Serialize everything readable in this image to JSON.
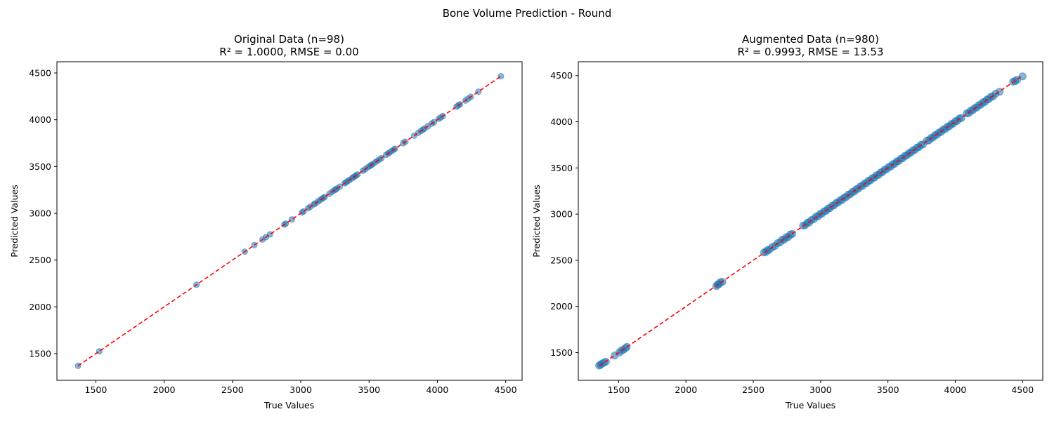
{
  "figure": {
    "suptitle": "Bone Volume Prediction - Round"
  },
  "colors": {
    "points": "#1f77b4",
    "identity_line": "#ff0000",
    "axes": "#000000",
    "background": "#ffffff"
  },
  "chart_data": [
    {
      "type": "scatter",
      "title": "Original Data (n=98)",
      "subtitle": "R² = 1.0000, RMSE = 0.00",
      "xlabel": "True Values",
      "ylabel": "Predicted Values",
      "xlim": [
        1215,
        4620
      ],
      "ylim": [
        1215,
        4620
      ],
      "xticks": [
        1500,
        2000,
        2500,
        3000,
        3500,
        4000,
        4500
      ],
      "yticks": [
        1500,
        2000,
        2500,
        3000,
        3500,
        4000,
        4500
      ],
      "grid": false,
      "identity_line": [
        1370,
        4465
      ],
      "series": [
        {
          "points": [
            [
              1370,
              1370
            ],
            [
              1525,
              1525
            ],
            [
              2237,
              2237
            ],
            [
              2590,
              2590
            ],
            [
              2660,
              2660
            ],
            [
              2720,
              2720
            ],
            [
              2745,
              2745
            ],
            [
              2775,
              2775
            ],
            [
              2880,
              2880
            ],
            [
              2890,
              2890
            ],
            [
              2935,
              2935
            ],
            [
              3010,
              3010
            ],
            [
              3020,
              3020
            ],
            [
              3055,
              3055
            ],
            [
              3070,
              3070
            ],
            [
              3095,
              3095
            ],
            [
              3105,
              3105
            ],
            [
              3125,
              3125
            ],
            [
              3140,
              3140
            ],
            [
              3155,
              3155
            ],
            [
              3165,
              3165
            ],
            [
              3175,
              3175
            ],
            [
              3210,
              3210
            ],
            [
              3230,
              3230
            ],
            [
              3245,
              3245
            ],
            [
              3255,
              3255
            ],
            [
              3265,
              3265
            ],
            [
              3285,
              3285
            ],
            [
              3320,
              3320
            ],
            [
              3330,
              3330
            ],
            [
              3345,
              3345
            ],
            [
              3355,
              3355
            ],
            [
              3375,
              3375
            ],
            [
              3385,
              3385
            ],
            [
              3395,
              3395
            ],
            [
              3405,
              3405
            ],
            [
              3415,
              3415
            ],
            [
              3455,
              3455
            ],
            [
              3470,
              3470
            ],
            [
              3490,
              3490
            ],
            [
              3505,
              3505
            ],
            [
              3515,
              3515
            ],
            [
              3525,
              3525
            ],
            [
              3545,
              3545
            ],
            [
              3560,
              3560
            ],
            [
              3575,
              3575
            ],
            [
              3590,
              3590
            ],
            [
              3625,
              3625
            ],
            [
              3640,
              3640
            ],
            [
              3650,
              3650
            ],
            [
              3665,
              3665
            ],
            [
              3680,
              3680
            ],
            [
              3690,
              3690
            ],
            [
              3750,
              3750
            ],
            [
              3765,
              3765
            ],
            [
              3830,
              3830
            ],
            [
              3860,
              3860
            ],
            [
              3880,
              3880
            ],
            [
              3895,
              3895
            ],
            [
              3905,
              3905
            ],
            [
              3930,
              3930
            ],
            [
              3960,
              3960
            ],
            [
              3975,
              3975
            ],
            [
              4010,
              4010
            ],
            [
              4025,
              4025
            ],
            [
              4040,
              4040
            ],
            [
              4140,
              4140
            ],
            [
              4155,
              4155
            ],
            [
              4165,
              4165
            ],
            [
              4205,
              4205
            ],
            [
              4225,
              4225
            ],
            [
              4245,
              4245
            ],
            [
              4300,
              4300
            ],
            [
              4465,
              4465
            ]
          ]
        }
      ]
    },
    {
      "type": "scatter",
      "title": "Augmented Data (n=980)",
      "subtitle": "R² = 0.9993, RMSE = 13.53",
      "xlabel": "True Values",
      "ylabel": "Predicted Values",
      "xlim": [
        1200,
        4650
      ],
      "ylim": [
        1200,
        4650
      ],
      "xticks": [
        1500,
        2000,
        2500,
        3000,
        3500,
        4000,
        4500
      ],
      "yticks": [
        1500,
        2000,
        2500,
        3000,
        3500,
        4000,
        4500
      ],
      "grid": false,
      "identity_line": [
        1355,
        4500
      ],
      "series": [
        {
          "points": [
            [
              1355,
              1360
            ],
            [
              1365,
              1368
            ],
            [
              1375,
              1380
            ],
            [
              1390,
              1392
            ],
            [
              1405,
              1402
            ],
            [
              1470,
              1468
            ],
            [
              1505,
              1500
            ],
            [
              1520,
              1522
            ],
            [
              1535,
              1530
            ],
            [
              1550,
              1548
            ],
            [
              1560,
              1562
            ],
            [
              2225,
              2220
            ],
            [
              2235,
              2238
            ],
            [
              2245,
              2240
            ],
            [
              2255,
              2262
            ],
            [
              2270,
              2266
            ],
            [
              2580,
              2585
            ],
            [
              2595,
              2590
            ],
            [
              2605,
              2610
            ],
            [
              2620,
              2615
            ],
            [
              2640,
              2642
            ],
            [
              2660,
              2655
            ],
            [
              2680,
              2685
            ],
            [
              2700,
              2695
            ],
            [
              2715,
              2722
            ],
            [
              2730,
              2725
            ],
            [
              2745,
              2750
            ],
            [
              2760,
              2752
            ],
            [
              2775,
              2780
            ],
            [
              2790,
              2785
            ],
            [
              2870,
              2875
            ],
            [
              2885,
              2880
            ],
            [
              2900,
              2905
            ],
            [
              2915,
              2910
            ],
            [
              2930,
              2935
            ],
            [
              2950,
              2945
            ],
            [
              2965,
              2972
            ],
            [
              2980,
              2975
            ],
            [
              2995,
              3000
            ],
            [
              3010,
              3005
            ],
            [
              3025,
              3030
            ],
            [
              3040,
              3035
            ],
            [
              3055,
              3060
            ],
            [
              3070,
              3065
            ],
            [
              3085,
              3090
            ],
            [
              3100,
              3095
            ],
            [
              3115,
              3120
            ],
            [
              3130,
              3125
            ],
            [
              3145,
              3150
            ],
            [
              3160,
              3155
            ],
            [
              3175,
              3180
            ],
            [
              3190,
              3185
            ],
            [
              3205,
              3210
            ],
            [
              3220,
              3215
            ],
            [
              3235,
              3240
            ],
            [
              3250,
              3245
            ],
            [
              3265,
              3270
            ],
            [
              3280,
              3275
            ],
            [
              3295,
              3300
            ],
            [
              3310,
              3305
            ],
            [
              3325,
              3330
            ],
            [
              3340,
              3335
            ],
            [
              3355,
              3360
            ],
            [
              3370,
              3365
            ],
            [
              3385,
              3390
            ],
            [
              3400,
              3395
            ],
            [
              3415,
              3420
            ],
            [
              3430,
              3425
            ],
            [
              3445,
              3450
            ],
            [
              3460,
              3455
            ],
            [
              3475,
              3480
            ],
            [
              3490,
              3485
            ],
            [
              3505,
              3510
            ],
            [
              3520,
              3515
            ],
            [
              3535,
              3540
            ],
            [
              3550,
              3545
            ],
            [
              3565,
              3570
            ],
            [
              3580,
              3575
            ],
            [
              3595,
              3600
            ],
            [
              3610,
              3605
            ],
            [
              3625,
              3630
            ],
            [
              3640,
              3635
            ],
            [
              3655,
              3660
            ],
            [
              3670,
              3665
            ],
            [
              3685,
              3690
            ],
            [
              3700,
              3695
            ],
            [
              3715,
              3720
            ],
            [
              3730,
              3725
            ],
            [
              3745,
              3750
            ],
            [
              3760,
              3755
            ],
            [
              3790,
              3795
            ],
            [
              3805,
              3800
            ],
            [
              3820,
              3825
            ],
            [
              3835,
              3830
            ],
            [
              3850,
              3855
            ],
            [
              3865,
              3860
            ],
            [
              3880,
              3885
            ],
            [
              3895,
              3890
            ],
            [
              3910,
              3915
            ],
            [
              3925,
              3920
            ],
            [
              3940,
              3945
            ],
            [
              3955,
              3950
            ],
            [
              3970,
              3975
            ],
            [
              3985,
              3980
            ],
            [
              4000,
              4005
            ],
            [
              4015,
              4010
            ],
            [
              4030,
              4035
            ],
            [
              4045,
              4040
            ],
            [
              4085,
              4090
            ],
            [
              4100,
              4095
            ],
            [
              4115,
              4120
            ],
            [
              4130,
              4125
            ],
            [
              4145,
              4150
            ],
            [
              4160,
              4155
            ],
            [
              4175,
              4180
            ],
            [
              4190,
              4185
            ],
            [
              4205,
              4210
            ],
            [
              4220,
              4215
            ],
            [
              4235,
              4240
            ],
            [
              4250,
              4245
            ],
            [
              4265,
              4270
            ],
            [
              4280,
              4275
            ],
            [
              4300,
              4305
            ],
            [
              4330,
              4325
            ],
            [
              4430,
              4435
            ],
            [
              4445,
              4440
            ],
            [
              4460,
              4455
            ],
            [
              4500,
              4492
            ]
          ]
        }
      ]
    }
  ]
}
